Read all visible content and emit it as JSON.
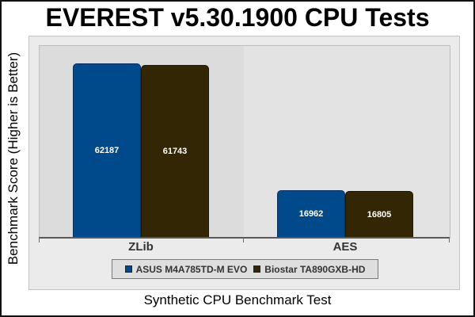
{
  "chart_data": {
    "type": "bar",
    "title": "EVEREST v5.30.1900 CPU Tests",
    "xlabel": "Synthetic CPU Benchmark Test",
    "ylabel": "Benchmark Score (Higher is Better)",
    "categories": [
      "ZLib",
      "AES"
    ],
    "series": [
      {
        "name": "ASUS M4A785TD-M EVO",
        "color": "#004a8c",
        "values": [
          62187,
          16962
        ]
      },
      {
        "name": "Biostar TA890GXB-HD",
        "color": "#332604",
        "values": [
          61743,
          16805
        ]
      }
    ],
    "ylim": [
      0,
      70000
    ],
    "grid": false,
    "legend_position": "bottom"
  },
  "labels": {
    "title": "EVEREST v5.30.1900 CPU Tests",
    "xlabel": "Synthetic CPU Benchmark Test",
    "ylabel": "Benchmark Score (Higher is Better)",
    "categories": [
      "ZLib",
      "AES"
    ],
    "legend": [
      "ASUS M4A785TD-M EVO",
      "Biostar TA890GXB-HD"
    ],
    "bars": {
      "zlib": [
        "62187",
        "61743"
      ],
      "aes": [
        "16962",
        "16805"
      ]
    }
  }
}
